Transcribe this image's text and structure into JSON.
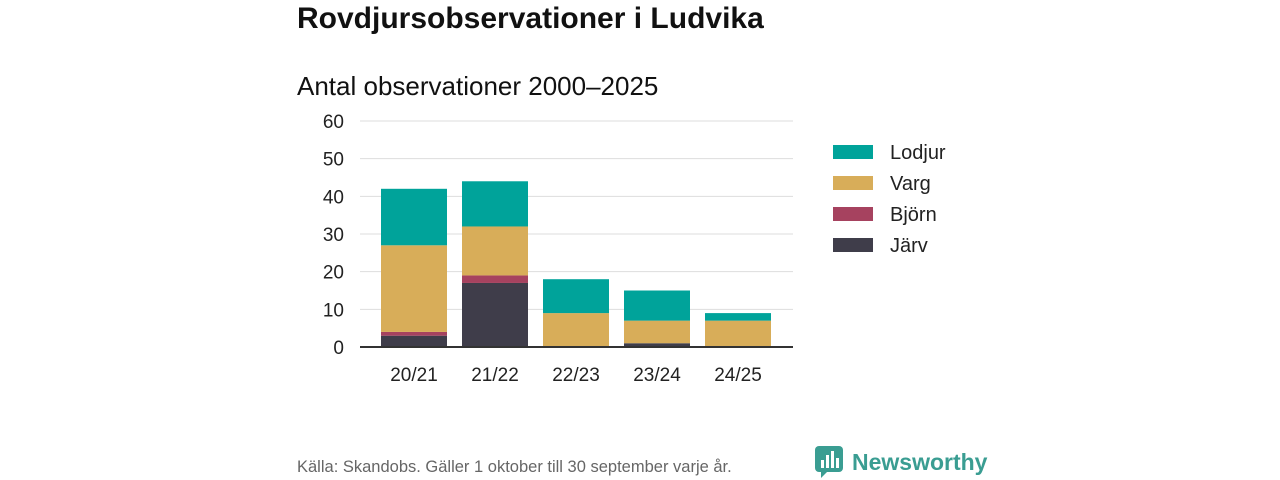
{
  "title": "Rovdjursobservationer i Ludvika",
  "chart_data": {
    "type": "bar",
    "stacked": true,
    "title": "Antal observationer 2000–2025",
    "categories": [
      "20/21",
      "21/22",
      "22/23",
      "23/24",
      "24/25"
    ],
    "series": [
      {
        "name": "Järv",
        "color": "#3f3d4a",
        "values": [
          3,
          17,
          0,
          1,
          0
        ]
      },
      {
        "name": "Björn",
        "color": "#a6425f",
        "values": [
          1,
          2,
          0,
          0,
          0
        ]
      },
      {
        "name": "Varg",
        "color": "#d8ad59",
        "values": [
          23,
          13,
          9,
          6,
          7
        ]
      },
      {
        "name": "Lodjur",
        "color": "#00a39a",
        "values": [
          15,
          12,
          9,
          8,
          2
        ]
      }
    ],
    "ylim": [
      0,
      60
    ],
    "yticks": [
      0,
      10,
      20,
      30,
      40,
      50,
      60
    ],
    "grid": true,
    "legend_position": "right"
  },
  "footer": {
    "source": "Källa: Skandobs. Gäller 1 oktober till 30 september varje år."
  },
  "logo": {
    "text": "Newsworthy",
    "color": "#3a9d92",
    "icon": "bar-chart-bubble-icon"
  }
}
